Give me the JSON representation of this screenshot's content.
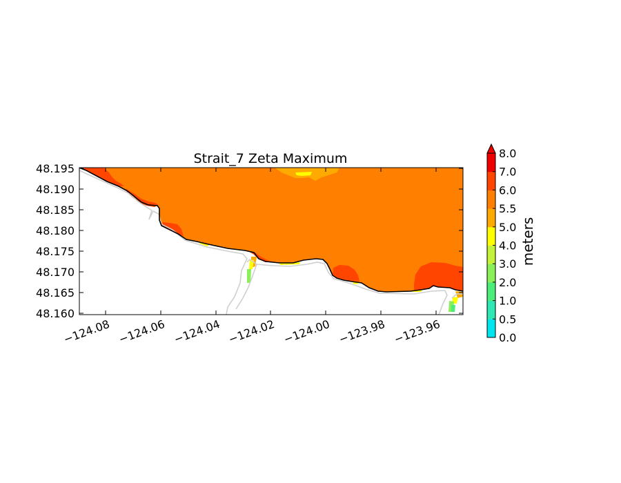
{
  "title": "Strait_7 Zeta Maximum",
  "x_ticks": [
    "−124.08",
    "−124.06",
    "−124.04",
    "−124.02",
    "−124.00",
    "−123.98",
    "−123.96"
  ],
  "y_ticks": [
    "48.195",
    "48.190",
    "48.185",
    "48.180",
    "48.175",
    "48.170",
    "48.165",
    "48.160"
  ],
  "colorbar": {
    "label": "meters",
    "tick_labels": [
      "8.0",
      "7.0",
      "6.0",
      "5.5",
      "5.0",
      "4.0",
      "3.0",
      "2.0",
      "1.0",
      "0.5",
      "0.0"
    ],
    "levels": [
      0.0,
      0.5,
      1.0,
      2.0,
      3.0,
      4.0,
      5.0,
      5.5,
      6.0,
      7.0,
      8.0
    ],
    "colors": [
      "#00e5ee",
      "#2ee8b4",
      "#4ded7a",
      "#8af05a",
      "#c2f23a",
      "#ffff00",
      "#ffaa00",
      "#ff8000",
      "#ff4500",
      "#ee0000"
    ],
    "extend": "max"
  },
  "chart_data": {
    "type": "heatmap",
    "title": "Strait_7 Zeta Maximum",
    "xlabel": "",
    "ylabel": "",
    "xlim": [
      -124.092,
      -123.953
    ],
    "ylim": [
      48.1597,
      48.1952
    ],
    "x_ticks": [
      -124.08,
      -124.06,
      -124.04,
      -124.02,
      -124.0,
      -123.98,
      -123.96
    ],
    "y_ticks": [
      48.195,
      48.19,
      48.185,
      48.18,
      48.175,
      48.17,
      48.165,
      48.16
    ],
    "colorbar_label": "meters",
    "colorbar_range": [
      0.0,
      8.0
    ],
    "dominant_value_range": [
      5.5,
      6.0
    ],
    "regions": [
      {
        "value_range": [
          5.5,
          6.0
        ],
        "area": "open water, most of domain"
      },
      {
        "value_range": [
          6.0,
          7.0
        ],
        "area": "northwest corner near shore"
      },
      {
        "value_range": [
          6.0,
          7.0
        ],
        "area": "nearshore strip -124.07 to -124.05"
      },
      {
        "value_range": [
          6.0,
          7.0
        ],
        "area": "patch near -124.06, 48.178"
      },
      {
        "value_range": [
          6.0,
          7.0
        ],
        "area": "patch near -123.995, 48.168"
      },
      {
        "value_range": [
          6.0,
          7.0
        ],
        "area": "eastern patch -123.97 to -123.953, 48.164-48.172"
      },
      {
        "value_range": [
          5.0,
          5.5
        ],
        "area": "northern edge -124.02 to -124.00"
      },
      {
        "value_range": [
          2.0,
          5.0
        ],
        "area": "shallow inlet near -124.027, 48.168"
      },
      {
        "value_range": [
          1.0,
          3.0
        ],
        "area": "shallow inlet near -123.956, 48.162"
      }
    ]
  }
}
